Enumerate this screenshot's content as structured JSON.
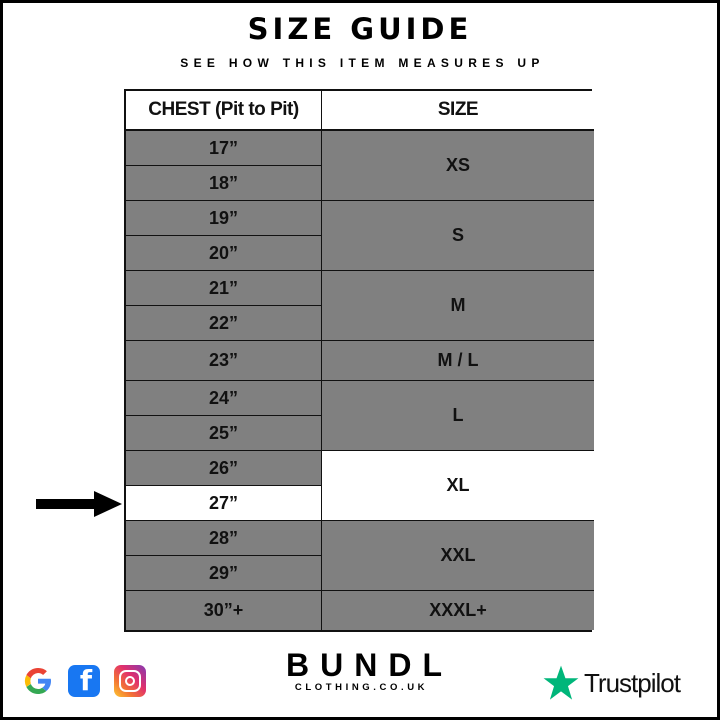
{
  "title": "SIZE GUIDE",
  "subtitle": "SEE HOW THIS ITEM MEASURES UP",
  "table": {
    "headers": [
      "CHEST (Pit to Pit)",
      "SIZE"
    ],
    "chest": [
      "17”",
      "18”",
      "19”",
      "20”",
      "21”",
      "22”",
      "23”",
      "24”",
      "25”",
      "26”",
      "27”",
      "28”",
      "29”",
      "30”+"
    ],
    "sizes": [
      {
        "label": "XS",
        "rows": 2
      },
      {
        "label": "S",
        "rows": 2
      },
      {
        "label": "M",
        "rows": 2
      },
      {
        "label": "M / L",
        "rows": 1
      },
      {
        "label": "L",
        "rows": 2
      },
      {
        "label": "XL",
        "rows": 2
      },
      {
        "label": "XXL",
        "rows": 2
      },
      {
        "label": "XXXL+",
        "rows": 1
      }
    ],
    "highlight_chest": "27”",
    "highlight_size": "XL"
  },
  "footer": {
    "brand": "BUNDL",
    "brand_sub": "CLOTHING.CO.UK",
    "social_icons": [
      "google-icon",
      "facebook-icon",
      "instagram-icon"
    ],
    "trustpilot": "Trustpilot",
    "trustpilot_color": "#00b67a"
  }
}
